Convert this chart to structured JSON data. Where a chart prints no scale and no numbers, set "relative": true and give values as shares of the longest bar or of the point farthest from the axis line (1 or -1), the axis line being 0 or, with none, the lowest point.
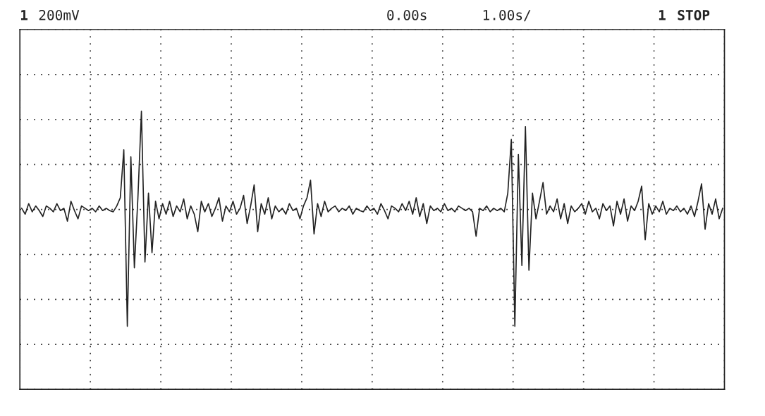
{
  "chart_data": {
    "type": "line",
    "relative": true,
    "grid": true,
    "legend": false,
    "tick_labels": false,
    "line_style": "solid",
    "marker": "none",
    "annotations": [
      "1",
      "200mV",
      "0.00s",
      "1.00s/",
      "1",
      "STOP"
    ],
    "categories": [
      null,
      null,
      null,
      null,
      null,
      null,
      null,
      null,
      null,
      null,
      null,
      null,
      null,
      null,
      null,
      null,
      null,
      null,
      null,
      null,
      null,
      null,
      null,
      null,
      null,
      null,
      null,
      null,
      null,
      null,
      null,
      null,
      null,
      null,
      null,
      null,
      null,
      null,
      null,
      null,
      null,
      null,
      null,
      null,
      null,
      null,
      null,
      null,
      null,
      null,
      null,
      null,
      null,
      null,
      null,
      null,
      null,
      null,
      null,
      null,
      null,
      null,
      null,
      null,
      null,
      null,
      null,
      null,
      null,
      null,
      null,
      null,
      null,
      null,
      null,
      null,
      null,
      null,
      null,
      null,
      null,
      null,
      null,
      null,
      null,
      null,
      null,
      null,
      null,
      null,
      null,
      null,
      null,
      null,
      null,
      null,
      null,
      null,
      null,
      null,
      null,
      null,
      null,
      null,
      null,
      null,
      null,
      null,
      null,
      null,
      null,
      null,
      null,
      null,
      null,
      null,
      null,
      null,
      null,
      null,
      null,
      null,
      null,
      null,
      null,
      null,
      null,
      null,
      null,
      null,
      null,
      null,
      null,
      null,
      null,
      null,
      null,
      null,
      null,
      null,
      null,
      null,
      null,
      null,
      null,
      null,
      null,
      null,
      null,
      null,
      null,
      null,
      null,
      null,
      null,
      null,
      null,
      null,
      null,
      null,
      null,
      null,
      null,
      null,
      null,
      null,
      null,
      null,
      null,
      null,
      null,
      null,
      null,
      null,
      null,
      null,
      null,
      null,
      null,
      null,
      null,
      null,
      null,
      null,
      null,
      null,
      null,
      null,
      null,
      null,
      null,
      null,
      null,
      null,
      null,
      null,
      null,
      null,
      null,
      null
    ],
    "series": [
      {
        "color": "#222222",
        "values": [
          0.01,
          -0.04,
          0.05,
          -0.02,
          0.03,
          -0.01,
          -0.06,
          0.03,
          0.01,
          -0.02,
          0.05,
          -0.01,
          0.01,
          -0.1,
          0.07,
          -0.01,
          -0.08,
          0.03,
          0.01,
          -0.01,
          0.01,
          -0.02,
          0.03,
          -0.01,
          0.01,
          -0.01,
          -0.02,
          0.03,
          0.1,
          0.51,
          -1,
          0.45,
          -0.5,
          0.1,
          0.84,
          -0.45,
          0.14,
          -0.37,
          0.07,
          -0.08,
          0.05,
          -0.04,
          0.07,
          -0.06,
          0.03,
          -0.02,
          0.09,
          -0.08,
          0.03,
          -0.04,
          -0.19,
          0.07,
          -0.02,
          0.05,
          -0.06,
          0.01,
          0.1,
          -0.1,
          0.03,
          -0.02,
          0.07,
          -0.04,
          0.01,
          0.12,
          -0.12,
          0.03,
          0.21,
          -0.19,
          0.05,
          -0.04,
          0.1,
          -0.08,
          0.03,
          -0.02,
          0.01,
          -0.04,
          0.05,
          -0.01,
          0.01,
          -0.08,
          0.03,
          0.1,
          0.25,
          -0.21,
          0.05,
          -0.06,
          0.07,
          -0.02,
          0.01,
          0.03,
          -0.02,
          0.01,
          -0.01,
          0.03,
          -0.04,
          0.01,
          -0.01,
          -0.02,
          0.03,
          -0.01,
          0.01,
          -0.04,
          0.05,
          -0.01,
          -0.08,
          0.03,
          0.01,
          -0.02,
          0.05,
          -0.01,
          0.07,
          -0.04,
          0.1,
          -0.06,
          0.05,
          -0.12,
          0.03,
          -0.01,
          0.01,
          -0.02,
          0.05,
          -0.01,
          0.01,
          -0.02,
          0.03,
          0.01,
          -0.01,
          0.01,
          -0.02,
          -0.23,
          0.01,
          -0.01,
          0.03,
          -0.02,
          0.01,
          -0.01,
          0.01,
          -0.02,
          0.14,
          0.6,
          -1,
          0.47,
          -0.48,
          0.71,
          -0.52,
          0.14,
          -0.08,
          0.07,
          0.23,
          -0.04,
          0.03,
          -0.02,
          0.09,
          -0.08,
          0.05,
          -0.12,
          0.03,
          -0.02,
          0.01,
          0.05,
          -0.04,
          0.07,
          -0.02,
          0.01,
          -0.08,
          0.05,
          -0.01,
          0.03,
          -0.14,
          0.07,
          -0.04,
          0.09,
          -0.1,
          0.03,
          -0.01,
          0.07,
          0.2,
          -0.26,
          0.05,
          -0.04,
          0.03,
          -0.02,
          0.07,
          -0.04,
          0.01,
          -0.01,
          0.03,
          -0.02,
          0.01,
          -0.04,
          0.03,
          -0.06,
          0.07,
          0.22,
          -0.17,
          0.05,
          -0.04,
          0.09,
          -0.08,
          0.01
        ]
      }
    ]
  }
}
